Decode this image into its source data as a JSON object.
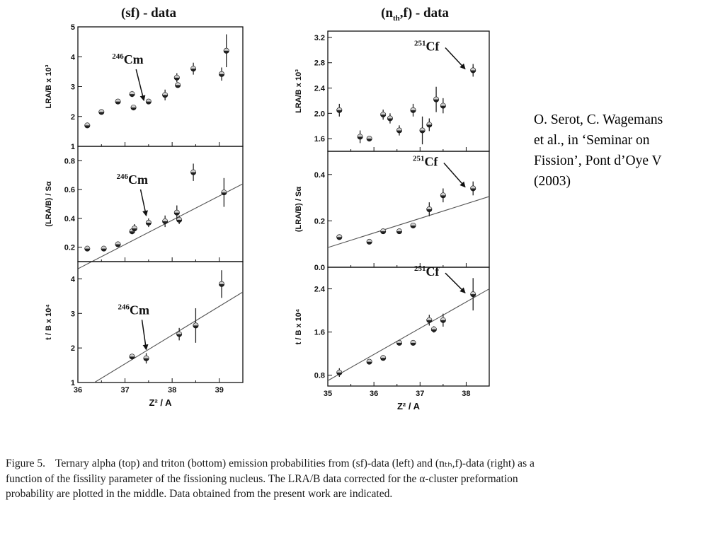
{
  "reference": {
    "lines": [
      "O. Serot, C. Wagemans",
      "et al., in ‘Seminar on",
      "Fission’, Pont d’Oye V",
      "(2003)"
    ]
  },
  "figure": {
    "left_title": "(sf) - data",
    "right_title": "(n",
    "right_title_sub": "th",
    "right_title_tail": ",f) - data",
    "xlabel": "Z² / A"
  },
  "caption": {
    "lead": "Figure 5.",
    "text": "Ternary alpha (top) and triton (bottom) emission probabilities from (sf)-data (left) and (nₜₕ,f)-data (right) as a function of the fissility parameter of the fissioning nucleus. The LRA/B data corrected for the α-cluster preformation probability are plotted in the middle. Data obtained from the present work are indicated."
  },
  "chart_data": [
    {
      "type": "scatter",
      "title": "(sf) - data",
      "ylabel": "LRA/B x 10³",
      "xlabel": "",
      "xlim": [
        36,
        39.5
      ],
      "ylim": [
        1,
        5
      ],
      "yticks": [
        1,
        2,
        3,
        4,
        5
      ],
      "xticks": [
        36,
        37,
        38,
        39
      ],
      "annotation": {
        "label": "Cm",
        "mass": "246",
        "target": [
          37.4,
          2.3
        ]
      },
      "points": [
        {
          "x": 36.2,
          "y": 1.7,
          "err": 0.05
        },
        {
          "x": 36.5,
          "y": 2.15,
          "err": 0.05
        },
        {
          "x": 36.85,
          "y": 2.5,
          "err": 0.08
        },
        {
          "x": 37.15,
          "y": 2.75,
          "err": 0.1
        },
        {
          "x": 37.18,
          "y": 2.3,
          "err": 0.08
        },
        {
          "x": 37.5,
          "y": 2.5,
          "err": 0.08
        },
        {
          "x": 37.85,
          "y": 2.72,
          "err": 0.18
        },
        {
          "x": 38.1,
          "y": 3.3,
          "err": 0.15
        },
        {
          "x": 38.12,
          "y": 3.05,
          "err": 0.08
        },
        {
          "x": 38.45,
          "y": 3.6,
          "err": 0.2
        },
        {
          "x": 39.05,
          "y": 3.42,
          "err": 0.22
        },
        {
          "x": 39.15,
          "y": 4.2,
          "err": 0.55
        }
      ]
    },
    {
      "type": "scatter",
      "ylabel": "(LRA/B) / Sα",
      "xlim": [
        36,
        39.5
      ],
      "ylim": [
        0.1,
        0.9
      ],
      "yticks": [
        0.2,
        0.4,
        0.6,
        0.8
      ],
      "annotation": {
        "label": "Cm",
        "mass": "246",
        "target": [
          37.45,
          0.37
        ]
      },
      "fit": {
        "x": [
          36,
          39.5
        ],
        "y": [
          0.05,
          0.64
        ]
      },
      "points": [
        {
          "x": 36.2,
          "y": 0.19,
          "err": 0.01
        },
        {
          "x": 36.55,
          "y": 0.19,
          "err": 0.01
        },
        {
          "x": 36.85,
          "y": 0.22,
          "err": 0.015
        },
        {
          "x": 37.15,
          "y": 0.31,
          "err": 0.02
        },
        {
          "x": 37.2,
          "y": 0.33,
          "err": 0.03
        },
        {
          "x": 37.5,
          "y": 0.37,
          "err": 0.03
        },
        {
          "x": 37.85,
          "y": 0.38,
          "err": 0.04
        },
        {
          "x": 38.1,
          "y": 0.44,
          "err": 0.05
        },
        {
          "x": 38.15,
          "y": 0.39,
          "err": 0.03
        },
        {
          "x": 38.45,
          "y": 0.72,
          "err": 0.06
        },
        {
          "x": 39.1,
          "y": 0.58,
          "err": 0.1
        }
      ]
    },
    {
      "type": "scatter",
      "ylabel": "t / B x 10⁴",
      "xlabel": "Z² / A",
      "xlim": [
        36,
        39.5
      ],
      "ylim": [
        1,
        4.5
      ],
      "yticks": [
        1,
        2,
        3,
        4
      ],
      "xticks": [
        36,
        37,
        38,
        39
      ],
      "annotation": {
        "label": "Cm",
        "mass": "246",
        "target": [
          37.45,
          1.75
        ]
      },
      "fit": {
        "x": [
          36.35,
          39.5
        ],
        "y": [
          1.0,
          3.62
        ]
      },
      "points": [
        {
          "x": 37.15,
          "y": 1.75,
          "err": 0.08
        },
        {
          "x": 37.45,
          "y": 1.7,
          "err": 0.15
        },
        {
          "x": 38.15,
          "y": 2.4,
          "err": 0.18
        },
        {
          "x": 38.5,
          "y": 2.65,
          "err": 0.5
        },
        {
          "x": 39.05,
          "y": 3.85,
          "err": 0.4
        }
      ]
    },
    {
      "type": "scatter",
      "title": "(n_th,f) - data",
      "ylabel": "LRA/B x 10³",
      "xlim": [
        35,
        38.5
      ],
      "ylim": [
        1.4,
        3.3
      ],
      "yticks": [
        1.6,
        2.0,
        2.4,
        2.8,
        3.2
      ],
      "xticks": [
        35,
        36,
        37,
        38
      ],
      "annotation": {
        "label": "Cf",
        "mass": "251",
        "target": [
          38.1,
          2.68
        ]
      },
      "points": [
        {
          "x": 35.25,
          "y": 2.05,
          "err": 0.1
        },
        {
          "x": 35.7,
          "y": 1.63,
          "err": 0.1
        },
        {
          "x": 35.9,
          "y": 1.6,
          "err": 0.04
        },
        {
          "x": 36.2,
          "y": 1.98,
          "err": 0.08
        },
        {
          "x": 36.35,
          "y": 1.92,
          "err": 0.08
        },
        {
          "x": 36.55,
          "y": 1.73,
          "err": 0.08
        },
        {
          "x": 36.85,
          "y": 2.05,
          "err": 0.1
        },
        {
          "x": 37.05,
          "y": 1.73,
          "err": 0.22
        },
        {
          "x": 37.2,
          "y": 1.82,
          "err": 0.1
        },
        {
          "x": 37.35,
          "y": 2.22,
          "err": 0.2
        },
        {
          "x": 37.5,
          "y": 2.12,
          "err": 0.12
        },
        {
          "x": 38.15,
          "y": 2.68,
          "err": 0.1
        }
      ]
    },
    {
      "type": "scatter",
      "ylabel": "(LRA/B) / Sα",
      "xlim": [
        35,
        38.5
      ],
      "ylim": [
        0,
        0.5
      ],
      "yticks": [
        0.0,
        0.2,
        0.4
      ],
      "annotation": {
        "label": "Cf",
        "mass": "251",
        "target": [
          38.1,
          0.34
        ]
      },
      "fit": {
        "x": [
          35,
          38.5
        ],
        "y": [
          0.085,
          0.305
        ]
      },
      "points": [
        {
          "x": 35.25,
          "y": 0.13,
          "err": 0.005
        },
        {
          "x": 35.9,
          "y": 0.11,
          "err": 0.005
        },
        {
          "x": 36.2,
          "y": 0.155,
          "err": 0.01
        },
        {
          "x": 36.55,
          "y": 0.155,
          "err": 0.01
        },
        {
          "x": 36.85,
          "y": 0.18,
          "err": 0.01
        },
        {
          "x": 37.2,
          "y": 0.25,
          "err": 0.03
        },
        {
          "x": 37.5,
          "y": 0.31,
          "err": 0.03
        },
        {
          "x": 38.15,
          "y": 0.34,
          "err": 0.03
        }
      ]
    },
    {
      "type": "scatter",
      "ylabel": "t / B x 10⁴",
      "xlabel": "Z² / A",
      "xlim": [
        35,
        38.5
      ],
      "ylim": [
        0.6,
        2.8
      ],
      "yticks": [
        0.8,
        1.6,
        2.4
      ],
      "xticks": [
        35,
        36,
        37,
        38
      ],
      "annotation": {
        "label": "Cf",
        "mass": "251",
        "target": [
          38.1,
          2.3
        ]
      },
      "fit": {
        "x": [
          35,
          38.5
        ],
        "y": [
          0.7,
          2.4
        ]
      },
      "points": [
        {
          "x": 35.25,
          "y": 0.85,
          "err": 0.08
        },
        {
          "x": 35.9,
          "y": 1.05,
          "err": 0.04
        },
        {
          "x": 36.2,
          "y": 1.12,
          "err": 0.04
        },
        {
          "x": 36.55,
          "y": 1.4,
          "err": 0.04
        },
        {
          "x": 36.85,
          "y": 1.4,
          "err": 0.05
        },
        {
          "x": 37.2,
          "y": 1.82,
          "err": 0.1
        },
        {
          "x": 37.3,
          "y": 1.65,
          "err": 0.06
        },
        {
          "x": 37.5,
          "y": 1.82,
          "err": 0.12
        },
        {
          "x": 38.15,
          "y": 2.3,
          "err": 0.3
        }
      ]
    }
  ]
}
